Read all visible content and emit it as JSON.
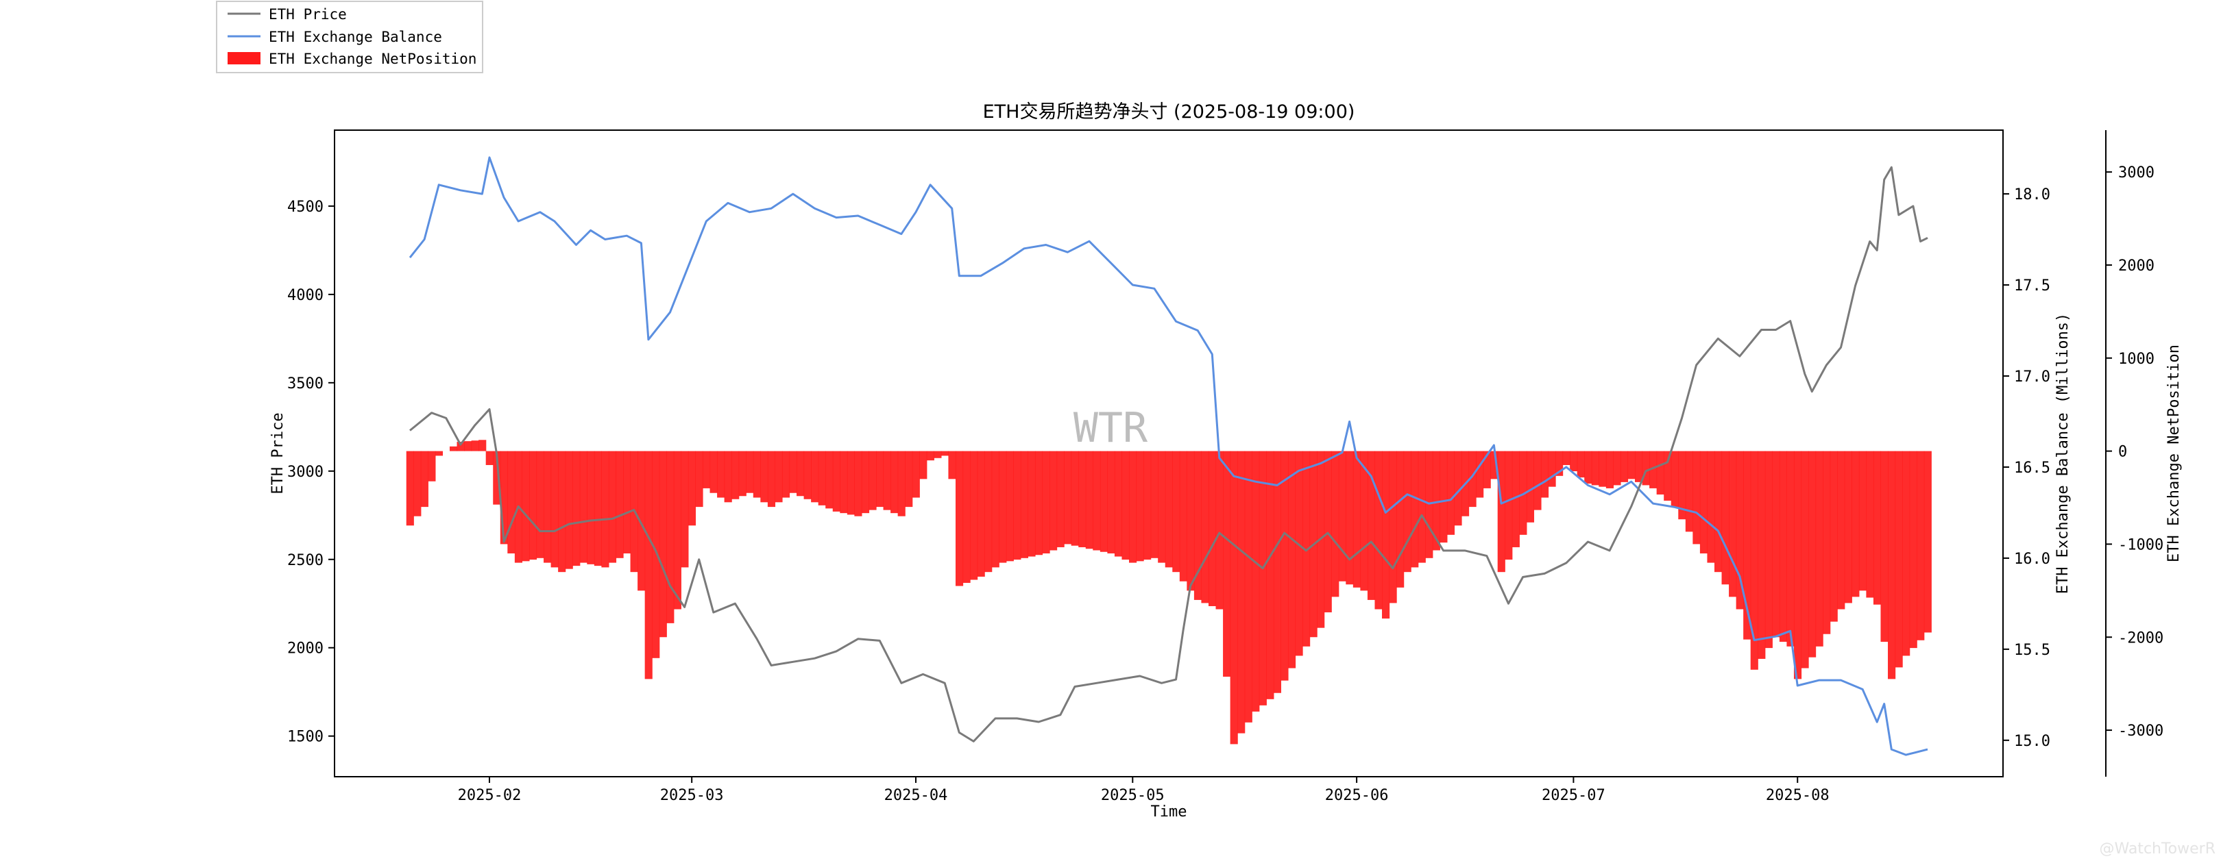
{
  "chart_data": {
    "type": "line",
    "title": "ETH交易所趋势净头寸 (2025-08-19 09:00)",
    "xlabel": "Time",
    "ylabel_left": "ETH Price",
    "ylabel_right1": "ETH Exchange Balance (Millions)",
    "ylabel_right2": "ETH Exchange NetPosition",
    "x_ticks": [
      "2025-02",
      "2025-03",
      "2025-04",
      "2025-05",
      "2025-06",
      "2025-07",
      "2025-08"
    ],
    "x_range": [
      "2025-01-21",
      "2025-08-19"
    ],
    "y_left_ticks": [
      1500,
      2000,
      2500,
      3000,
      3500,
      4000,
      4500
    ],
    "y_left_range": [
      1270,
      4930
    ],
    "y_right1_ticks": [
      15.0,
      15.5,
      16.0,
      16.5,
      17.0,
      17.5,
      18.0
    ],
    "y_right1_range": [
      14.8,
      18.35
    ],
    "y_right2_ticks": [
      -3000,
      -2000,
      -1000,
      0,
      1000,
      2000,
      3000
    ],
    "y_right2_range": [
      -3500,
      3450
    ],
    "grid": false,
    "legend_position": "top-left",
    "watermark": "WTR",
    "credit": "@WatchTowerR",
    "series": [
      {
        "name": "ETH Price",
        "axis": "left",
        "color": "#7a7a7a",
        "points": [
          [
            "2025-01-21",
            3230
          ],
          [
            "2025-01-24",
            3330
          ],
          [
            "2025-01-26",
            3300
          ],
          [
            "2025-01-28",
            3150
          ],
          [
            "2025-01-30",
            3260
          ],
          [
            "2025-02-01",
            3350
          ],
          [
            "2025-02-02",
            3100
          ],
          [
            "2025-02-03",
            2600
          ],
          [
            "2025-02-05",
            2800
          ],
          [
            "2025-02-08",
            2660
          ],
          [
            "2025-02-10",
            2660
          ],
          [
            "2025-02-12",
            2700
          ],
          [
            "2025-02-15",
            2720
          ],
          [
            "2025-02-18",
            2730
          ],
          [
            "2025-02-21",
            2780
          ],
          [
            "2025-02-24",
            2550
          ],
          [
            "2025-02-25",
            2450
          ],
          [
            "2025-02-26",
            2350
          ],
          [
            "2025-02-28",
            2230
          ],
          [
            "2025-03-02",
            2500
          ],
          [
            "2025-03-04",
            2200
          ],
          [
            "2025-03-07",
            2250
          ],
          [
            "2025-03-10",
            2050
          ],
          [
            "2025-03-12",
            1900
          ],
          [
            "2025-03-15",
            1920
          ],
          [
            "2025-03-18",
            1940
          ],
          [
            "2025-03-21",
            1980
          ],
          [
            "2025-03-24",
            2050
          ],
          [
            "2025-03-27",
            2040
          ],
          [
            "2025-03-30",
            1800
          ],
          [
            "2025-04-02",
            1850
          ],
          [
            "2025-04-05",
            1800
          ],
          [
            "2025-04-07",
            1520
          ],
          [
            "2025-04-09",
            1470
          ],
          [
            "2025-04-12",
            1600
          ],
          [
            "2025-04-15",
            1600
          ],
          [
            "2025-04-18",
            1580
          ],
          [
            "2025-04-21",
            1620
          ],
          [
            "2025-04-23",
            1780
          ],
          [
            "2025-04-26",
            1800
          ],
          [
            "2025-04-29",
            1820
          ],
          [
            "2025-05-02",
            1840
          ],
          [
            "2025-05-05",
            1800
          ],
          [
            "2025-05-07",
            1820
          ],
          [
            "2025-05-08",
            2100
          ],
          [
            "2025-05-09",
            2350
          ],
          [
            "2025-05-11",
            2500
          ],
          [
            "2025-05-13",
            2650
          ],
          [
            "2025-05-16",
            2550
          ],
          [
            "2025-05-19",
            2450
          ],
          [
            "2025-05-22",
            2650
          ],
          [
            "2025-05-25",
            2550
          ],
          [
            "2025-05-28",
            2650
          ],
          [
            "2025-05-31",
            2500
          ],
          [
            "2025-06-03",
            2600
          ],
          [
            "2025-06-06",
            2450
          ],
          [
            "2025-06-10",
            2750
          ],
          [
            "2025-06-13",
            2550
          ],
          [
            "2025-06-16",
            2550
          ],
          [
            "2025-06-19",
            2520
          ],
          [
            "2025-06-22",
            2250
          ],
          [
            "2025-06-24",
            2400
          ],
          [
            "2025-06-27",
            2420
          ],
          [
            "2025-06-30",
            2480
          ],
          [
            "2025-07-03",
            2600
          ],
          [
            "2025-07-06",
            2550
          ],
          [
            "2025-07-09",
            2800
          ],
          [
            "2025-07-11",
            3000
          ],
          [
            "2025-07-14",
            3050
          ],
          [
            "2025-07-16",
            3300
          ],
          [
            "2025-07-18",
            3600
          ],
          [
            "2025-07-21",
            3750
          ],
          [
            "2025-07-24",
            3650
          ],
          [
            "2025-07-27",
            3800
          ],
          [
            "2025-07-29",
            3800
          ],
          [
            "2025-07-31",
            3850
          ],
          [
            "2025-08-02",
            3550
          ],
          [
            "2025-08-03",
            3450
          ],
          [
            "2025-08-05",
            3600
          ],
          [
            "2025-08-07",
            3700
          ],
          [
            "2025-08-09",
            4050
          ],
          [
            "2025-08-11",
            4300
          ],
          [
            "2025-08-12",
            4250
          ],
          [
            "2025-08-13",
            4650
          ],
          [
            "2025-08-14",
            4720
          ],
          [
            "2025-08-15",
            4450
          ],
          [
            "2025-08-17",
            4500
          ],
          [
            "2025-08-18",
            4300
          ],
          [
            "2025-08-19",
            4320
          ]
        ]
      },
      {
        "name": "ETH Exchange Balance",
        "axis": "right1",
        "color": "#5b8fe0",
        "points": [
          [
            "2025-01-21",
            17.65
          ],
          [
            "2025-01-23",
            17.75
          ],
          [
            "2025-01-25",
            18.05
          ],
          [
            "2025-01-28",
            18.02
          ],
          [
            "2025-01-31",
            18.0
          ],
          [
            "2025-02-01",
            18.2
          ],
          [
            "2025-02-03",
            17.98
          ],
          [
            "2025-02-05",
            17.85
          ],
          [
            "2025-02-08",
            17.9
          ],
          [
            "2025-02-10",
            17.85
          ],
          [
            "2025-02-13",
            17.72
          ],
          [
            "2025-02-15",
            17.8
          ],
          [
            "2025-02-17",
            17.75
          ],
          [
            "2025-02-20",
            17.77
          ],
          [
            "2025-02-22",
            17.73
          ],
          [
            "2025-02-23",
            17.2
          ],
          [
            "2025-02-26",
            17.35
          ],
          [
            "2025-02-28",
            17.55
          ],
          [
            "2025-03-03",
            17.85
          ],
          [
            "2025-03-06",
            17.95
          ],
          [
            "2025-03-09",
            17.9
          ],
          [
            "2025-03-12",
            17.92
          ],
          [
            "2025-03-15",
            18.0
          ],
          [
            "2025-03-18",
            17.92
          ],
          [
            "2025-03-21",
            17.87
          ],
          [
            "2025-03-24",
            17.88
          ],
          [
            "2025-03-27",
            17.83
          ],
          [
            "2025-03-30",
            17.78
          ],
          [
            "2025-04-01",
            17.9
          ],
          [
            "2025-04-03",
            18.05
          ],
          [
            "2025-04-06",
            17.92
          ],
          [
            "2025-04-07",
            17.55
          ],
          [
            "2025-04-10",
            17.55
          ],
          [
            "2025-04-13",
            17.62
          ],
          [
            "2025-04-16",
            17.7
          ],
          [
            "2025-04-19",
            17.72
          ],
          [
            "2025-04-22",
            17.68
          ],
          [
            "2025-04-25",
            17.74
          ],
          [
            "2025-04-28",
            17.62
          ],
          [
            "2025-05-01",
            17.5
          ],
          [
            "2025-05-04",
            17.48
          ],
          [
            "2025-05-07",
            17.3
          ],
          [
            "2025-05-10",
            17.25
          ],
          [
            "2025-05-12",
            17.12
          ],
          [
            "2025-05-13",
            16.55
          ],
          [
            "2025-05-15",
            16.45
          ],
          [
            "2025-05-18",
            16.42
          ],
          [
            "2025-05-21",
            16.4
          ],
          [
            "2025-05-24",
            16.48
          ],
          [
            "2025-05-27",
            16.52
          ],
          [
            "2025-05-30",
            16.58
          ],
          [
            "2025-05-31",
            16.75
          ],
          [
            "2025-06-01",
            16.55
          ],
          [
            "2025-06-03",
            16.45
          ],
          [
            "2025-06-05",
            16.25
          ],
          [
            "2025-06-08",
            16.35
          ],
          [
            "2025-06-11",
            16.3
          ],
          [
            "2025-06-14",
            16.32
          ],
          [
            "2025-06-17",
            16.45
          ],
          [
            "2025-06-20",
            16.62
          ],
          [
            "2025-06-21",
            16.3
          ],
          [
            "2025-06-24",
            16.35
          ],
          [
            "2025-06-27",
            16.42
          ],
          [
            "2025-06-30",
            16.5
          ],
          [
            "2025-07-03",
            16.4
          ],
          [
            "2025-07-06",
            16.35
          ],
          [
            "2025-07-09",
            16.42
          ],
          [
            "2025-07-12",
            16.3
          ],
          [
            "2025-07-15",
            16.28
          ],
          [
            "2025-07-18",
            16.25
          ],
          [
            "2025-07-21",
            16.15
          ],
          [
            "2025-07-24",
            15.9
          ],
          [
            "2025-07-26",
            15.55
          ],
          [
            "2025-07-29",
            15.57
          ],
          [
            "2025-07-31",
            15.6
          ],
          [
            "2025-08-01",
            15.3
          ],
          [
            "2025-08-04",
            15.33
          ],
          [
            "2025-08-07",
            15.33
          ],
          [
            "2025-08-10",
            15.28
          ],
          [
            "2025-08-12",
            15.1
          ],
          [
            "2025-08-13",
            15.2
          ],
          [
            "2025-08-14",
            14.95
          ],
          [
            "2025-08-16",
            14.92
          ],
          [
            "2025-08-19",
            14.95
          ]
        ]
      },
      {
        "name": "ETH Exchange NetPosition",
        "axis": "right2",
        "type": "bar",
        "color": "#ff1a1a",
        "points": [
          [
            "2025-01-21",
            -800
          ],
          [
            "2025-01-23",
            -600
          ],
          [
            "2025-01-25",
            -50
          ],
          [
            "2025-01-28",
            100
          ],
          [
            "2025-01-31",
            120
          ],
          [
            "2025-02-01",
            -150
          ],
          [
            "2025-02-03",
            -1000
          ],
          [
            "2025-02-05",
            -1200
          ],
          [
            "2025-02-08",
            -1150
          ],
          [
            "2025-02-11",
            -1300
          ],
          [
            "2025-02-14",
            -1200
          ],
          [
            "2025-02-17",
            -1250
          ],
          [
            "2025-02-20",
            -1100
          ],
          [
            "2025-02-22",
            -1500
          ],
          [
            "2025-02-23",
            -2450
          ],
          [
            "2025-02-25",
            -2000
          ],
          [
            "2025-02-27",
            -1700
          ],
          [
            "2025-03-01",
            -800
          ],
          [
            "2025-03-03",
            -400
          ],
          [
            "2025-03-06",
            -550
          ],
          [
            "2025-03-09",
            -450
          ],
          [
            "2025-03-12",
            -600
          ],
          [
            "2025-03-15",
            -450
          ],
          [
            "2025-03-18",
            -550
          ],
          [
            "2025-03-21",
            -650
          ],
          [
            "2025-03-24",
            -700
          ],
          [
            "2025-03-27",
            -600
          ],
          [
            "2025-03-30",
            -700
          ],
          [
            "2025-04-01",
            -500
          ],
          [
            "2025-04-03",
            -100
          ],
          [
            "2025-04-05",
            -50
          ],
          [
            "2025-04-06",
            -300
          ],
          [
            "2025-04-07",
            -1450
          ],
          [
            "2025-04-10",
            -1350
          ],
          [
            "2025-04-13",
            -1200
          ],
          [
            "2025-04-16",
            -1150
          ],
          [
            "2025-04-19",
            -1100
          ],
          [
            "2025-04-22",
            -1000
          ],
          [
            "2025-04-25",
            -1050
          ],
          [
            "2025-04-28",
            -1100
          ],
          [
            "2025-05-01",
            -1200
          ],
          [
            "2025-05-04",
            -1150
          ],
          [
            "2025-05-07",
            -1300
          ],
          [
            "2025-05-10",
            -1600
          ],
          [
            "2025-05-13",
            -1700
          ],
          [
            "2025-05-15",
            -3150
          ],
          [
            "2025-05-18",
            -2800
          ],
          [
            "2025-05-21",
            -2600
          ],
          [
            "2025-05-24",
            -2200
          ],
          [
            "2025-05-27",
            -1900
          ],
          [
            "2025-05-30",
            -1400
          ],
          [
            "2025-06-02",
            -1500
          ],
          [
            "2025-06-05",
            -1800
          ],
          [
            "2025-06-08",
            -1300
          ],
          [
            "2025-06-11",
            -1150
          ],
          [
            "2025-06-14",
            -900
          ],
          [
            "2025-06-17",
            -600
          ],
          [
            "2025-06-20",
            -300
          ],
          [
            "2025-06-21",
            -1300
          ],
          [
            "2025-06-24",
            -900
          ],
          [
            "2025-06-27",
            -500
          ],
          [
            "2025-06-30",
            -150
          ],
          [
            "2025-07-03",
            -350
          ],
          [
            "2025-07-06",
            -400
          ],
          [
            "2025-07-09",
            -300
          ],
          [
            "2025-07-12",
            -400
          ],
          [
            "2025-07-15",
            -600
          ],
          [
            "2025-07-18",
            -1000
          ],
          [
            "2025-07-21",
            -1300
          ],
          [
            "2025-07-24",
            -1700
          ],
          [
            "2025-07-26",
            -2350
          ],
          [
            "2025-07-29",
            -2000
          ],
          [
            "2025-07-31",
            -2100
          ],
          [
            "2025-08-01",
            -2450
          ],
          [
            "2025-08-04",
            -2100
          ],
          [
            "2025-08-07",
            -1700
          ],
          [
            "2025-08-10",
            -1500
          ],
          [
            "2025-08-12",
            -1650
          ],
          [
            "2025-08-14",
            -2450
          ],
          [
            "2025-08-16",
            -2200
          ],
          [
            "2025-08-19",
            -1950
          ]
        ]
      }
    ]
  }
}
